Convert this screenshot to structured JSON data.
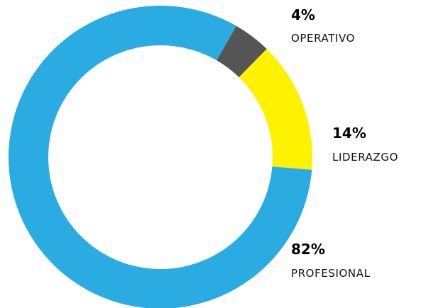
{
  "chart_data": {
    "type": "pie",
    "variant": "donut",
    "slices": [
      {
        "label": "OPERATIVO",
        "value": 4,
        "display": "4%",
        "color": "#555555"
      },
      {
        "label": "LIDERAZGO",
        "value": 14,
        "display": "14%",
        "color": "#FFF200"
      },
      {
        "label": "PROFESIONAL",
        "value": 82,
        "display": "82%",
        "color": "#2AACE2"
      }
    ],
    "start": "near top, clockwise",
    "legend": "right"
  }
}
